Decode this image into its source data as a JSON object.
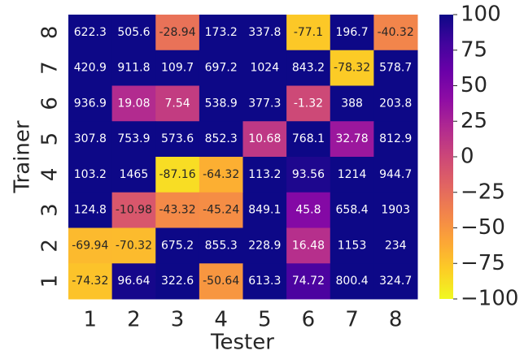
{
  "chart_data": {
    "type": "heatmap",
    "x_label": "Tester",
    "y_label": "Trainer",
    "x_categories": [
      "1",
      "2",
      "3",
      "4",
      "5",
      "6",
      "7",
      "8"
    ],
    "y_categories": [
      "8",
      "7",
      "6",
      "5",
      "4",
      "3",
      "2",
      "1"
    ],
    "values": [
      [
        622.3,
        505.6,
        -28.94,
        173.2,
        337.8,
        -77.1,
        196.7,
        -40.32
      ],
      [
        420.9,
        911.8,
        109.7,
        697.2,
        1024,
        843.2,
        -78.32,
        578.7
      ],
      [
        936.9,
        19.08,
        7.54,
        538.9,
        377.3,
        -1.32,
        388,
        203.8
      ],
      [
        307.8,
        753.9,
        573.6,
        852.3,
        10.68,
        768.1,
        32.78,
        812.9
      ],
      [
        103.2,
        1465,
        -87.16,
        -64.32,
        113.2,
        93.56,
        1214,
        944.7
      ],
      [
        124.8,
        -10.98,
        -43.32,
        -45.24,
        849.1,
        45.8,
        658.4,
        1903
      ],
      [
        -69.94,
        -70.32,
        675.2,
        855.3,
        228.9,
        16.48,
        1153,
        234
      ],
      [
        -74.32,
        96.64,
        322.6,
        -50.64,
        613.3,
        74.72,
        800.4,
        324.7
      ]
    ],
    "colormap": "plasma_r",
    "clim": [
      -100,
      100
    ],
    "cticks": [
      {
        "value": -100,
        "label": "−100"
      },
      {
        "value": -75,
        "label": "−75"
      },
      {
        "value": -50,
        "label": "−50"
      },
      {
        "value": -25,
        "label": "−25"
      },
      0,
      25,
      50,
      75,
      100
    ]
  }
}
